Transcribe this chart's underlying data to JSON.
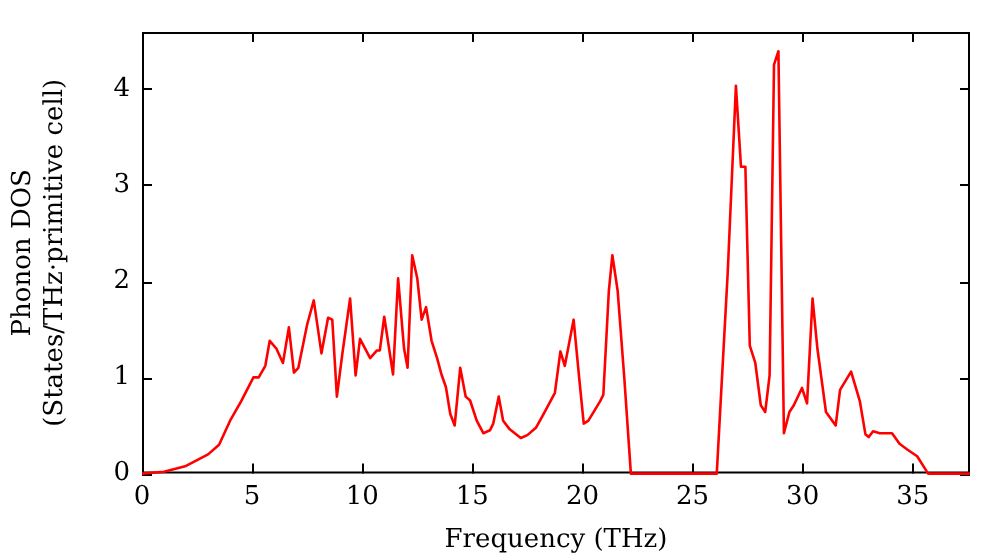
{
  "chart_data": {
    "type": "line",
    "xlabel": "Frequency (THz)",
    "ylabel": "Phonon DOS\n(States/THz·primitive cell)",
    "xlim": [
      0,
      37.6
    ],
    "ylim": [
      0,
      4.59
    ],
    "xticks": [
      0,
      5,
      10,
      15,
      20,
      25,
      30,
      35
    ],
    "yticks": [
      0,
      1,
      2,
      3,
      4
    ],
    "grid": false,
    "legend": false,
    "marker": "none",
    "line_style": "solid",
    "series": [
      {
        "color": "#ff0000",
        "x": [
          0,
          1,
          2,
          3,
          3.5,
          4,
          4.5,
          5.06,
          5.3,
          5.6,
          5.8,
          6.1,
          6.4,
          6.67,
          6.9,
          7.1,
          7.5,
          7.8,
          8.15,
          8.45,
          8.64,
          8.85,
          9.1,
          9.45,
          9.7,
          9.9,
          10.36,
          10.67,
          10.8,
          11.0,
          11.4,
          11.63,
          11.9,
          12.06,
          12.27,
          12.5,
          12.7,
          12.9,
          13.15,
          13.4,
          13.6,
          13.8,
          14.0,
          14.2,
          14.45,
          14.7,
          14.9,
          15.2,
          15.5,
          15.8,
          15.95,
          16.2,
          16.4,
          16.7,
          17.2,
          17.5,
          17.9,
          18.24,
          18.75,
          19.0,
          19.2,
          19.6,
          19.85,
          20.06,
          20.27,
          20.8,
          20.95,
          21.2,
          21.36,
          21.6,
          21.9,
          22.2,
          26.1,
          26.6,
          26.97,
          27.2,
          27.4,
          27.6,
          27.85,
          28.1,
          28.3,
          28.5,
          28.7,
          28.9,
          29.15,
          29.4,
          29.6,
          29.97,
          30.2,
          30.45,
          30.67,
          31.06,
          31.5,
          31.7,
          32.2,
          32.6,
          32.85,
          33.0,
          33.2,
          33.5,
          34.06,
          34.4,
          34.75,
          35.2,
          35.7,
          37.6
        ],
        "values": [
          0,
          0.02,
          0.08,
          0.2,
          0.3,
          0.55,
          0.75,
          1.0,
          1.0,
          1.12,
          1.38,
          1.3,
          1.15,
          1.52,
          1.05,
          1.1,
          1.55,
          1.8,
          1.25,
          1.62,
          1.6,
          0.8,
          1.25,
          1.82,
          1.02,
          1.4,
          1.2,
          1.28,
          1.28,
          1.63,
          1.03,
          2.03,
          1.3,
          1.1,
          2.27,
          2.03,
          1.6,
          1.73,
          1.38,
          1.2,
          1.03,
          0.9,
          0.62,
          0.5,
          1.1,
          0.8,
          0.76,
          0.55,
          0.42,
          0.45,
          0.52,
          0.8,
          0.55,
          0.46,
          0.37,
          0.4,
          0.48,
          0.62,
          0.84,
          1.27,
          1.12,
          1.6,
          1.0,
          0.52,
          0.55,
          0.75,
          0.82,
          1.9,
          2.27,
          1.9,
          1.0,
          0,
          0,
          2.1,
          4.03,
          3.19,
          3.19,
          1.33,
          1.15,
          0.71,
          0.64,
          1.02,
          4.25,
          4.39,
          0.42,
          0.64,
          0.71,
          0.89,
          0.73,
          1.82,
          1.3,
          0.64,
          0.5,
          0.87,
          1.06,
          0.75,
          0.41,
          0.38,
          0.44,
          0.42,
          0.42,
          0.31,
          0.25,
          0.18,
          0,
          0
        ]
      }
    ]
  }
}
